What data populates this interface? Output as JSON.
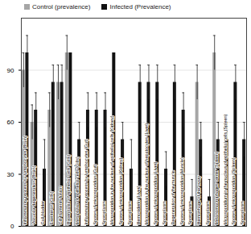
{
  "chart_data": {
    "type": "bar",
    "categories": [
      "Inflammatory process by lymphocytes (Brain)",
      "Vacuolar degeneration (Brain)",
      "Gall bladder",
      "Exenteron (Gills)",
      "Gill filaments fusion",
      "Hyperplasia of epithelial cells (Gills)",
      "Metaplasia of epithelial cells (Gills)",
      "Inflammatory process by lymphocytes (Gut)",
      "Spores of microsporidian (Gut)",
      "Sporoplasm",
      "Microsporidian in the nucleus of epithelial cells (Kidney)",
      "Spores of microsporidian (Kidney)",
      "Sporoplasm",
      "Hemosiderin (Liver)",
      "Microsporidian in the nucleus of hepatocytes (Liver)",
      "Spores of microsporidian (Liver)",
      "Sporoplasm",
      "Degeneration of the muscle",
      "Spores of microsporidian (Muscle)",
      "Sporoplasm",
      "Hemorrhage of the ovary",
      "Sporoplasm",
      "Melanomacrophages center (Spleen)",
      "Microsporidium in the nucleus of epithelial cells (Spleen)",
      "Spores of microsporidian (Spleen)",
      "Sporoplasm"
    ],
    "series": [
      {
        "name": "Control (prevalence)",
        "color": "#a6a6a6",
        "values": [
          90,
          60,
          0,
          67,
          83,
          100,
          25,
          0,
          0,
          0,
          0,
          0,
          0,
          0,
          0,
          0,
          0,
          0,
          0,
          0,
          83,
          0,
          100,
          0,
          0,
          0
        ],
        "errors": [
          10,
          10,
          0,
          10,
          10,
          10,
          10,
          0,
          0,
          0,
          0,
          0,
          0,
          0,
          0,
          0,
          0,
          0,
          0,
          0,
          10,
          0,
          10,
          0,
          0,
          0
        ]
      },
      {
        "name": "Infected (Prevalence)",
        "color": "#111111",
        "values": [
          100,
          67,
          33,
          83,
          83,
          100,
          50,
          67,
          67,
          67,
          100,
          50,
          33,
          83,
          83,
          83,
          33,
          83,
          67,
          17,
          50,
          17,
          50,
          50,
          83,
          50
        ],
        "errors": [
          10,
          10,
          17,
          10,
          10,
          0,
          10,
          10,
          10,
          10,
          0,
          10,
          17,
          10,
          10,
          10,
          10,
          10,
          10,
          10,
          10,
          10,
          10,
          10,
          10,
          10
        ]
      }
    ],
    "ylim": [
      0,
      120
    ],
    "yticks": [
      0,
      30,
      60,
      90
    ],
    "grid": true,
    "legend": "top"
  }
}
